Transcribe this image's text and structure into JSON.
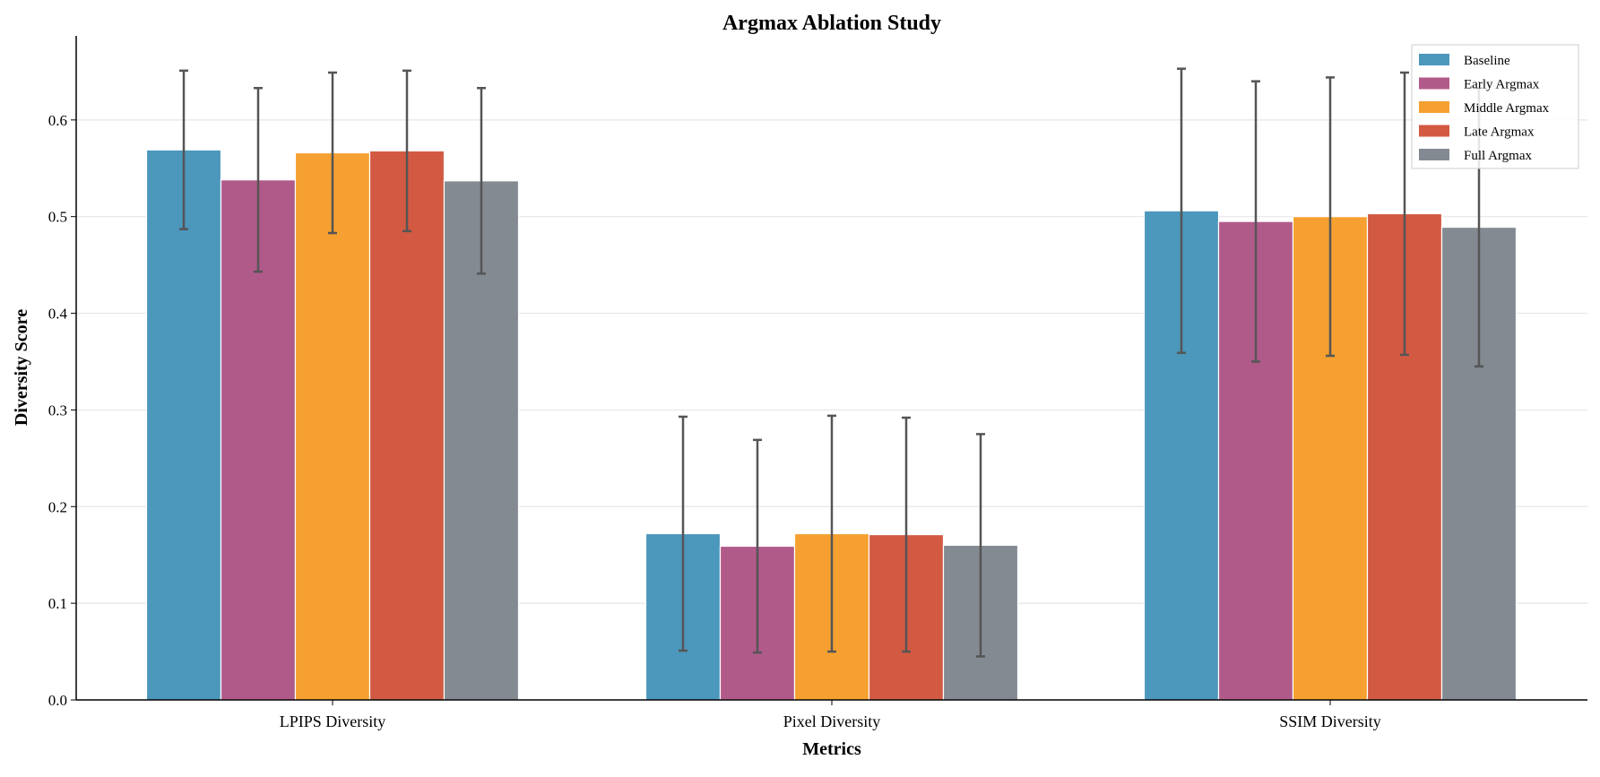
{
  "chart_data": {
    "type": "bar",
    "title": "Argmax Ablation Study",
    "xlabel": "Metrics",
    "ylabel": "Diversity Score",
    "categories": [
      "LPIPS Diversity",
      "Pixel Diversity",
      "SSIM Diversity"
    ],
    "ylim": [
      0,
      0.687
    ],
    "yticks": [
      "0.0",
      "0.1",
      "0.2",
      "0.3",
      "0.4",
      "0.5",
      "0.6"
    ],
    "grid": true,
    "legend_position": "top-right",
    "error_bars": true,
    "series": [
      {
        "name": "Baseline",
        "color": "#4c97bc",
        "values": [
          0.569,
          0.172,
          0.506
        ],
        "errors": [
          0.082,
          0.121,
          0.147
        ]
      },
      {
        "name": "Early Argmax",
        "color": "#b05a8a",
        "values": [
          0.538,
          0.159,
          0.495
        ],
        "errors": [
          0.095,
          0.11,
          0.145
        ]
      },
      {
        "name": "Middle Argmax",
        "color": "#f5a030",
        "values": [
          0.566,
          0.172,
          0.5
        ],
        "errors": [
          0.083,
          0.122,
          0.144
        ]
      },
      {
        "name": "Late Argmax",
        "color": "#d25a42",
        "values": [
          0.568,
          0.171,
          0.503
        ],
        "errors": [
          0.083,
          0.121,
          0.146
        ]
      },
      {
        "name": "Full Argmax",
        "color": "#838a91",
        "values": [
          0.537,
          0.16,
          0.489
        ],
        "errors": [
          0.096,
          0.115,
          0.144
        ]
      }
    ]
  }
}
